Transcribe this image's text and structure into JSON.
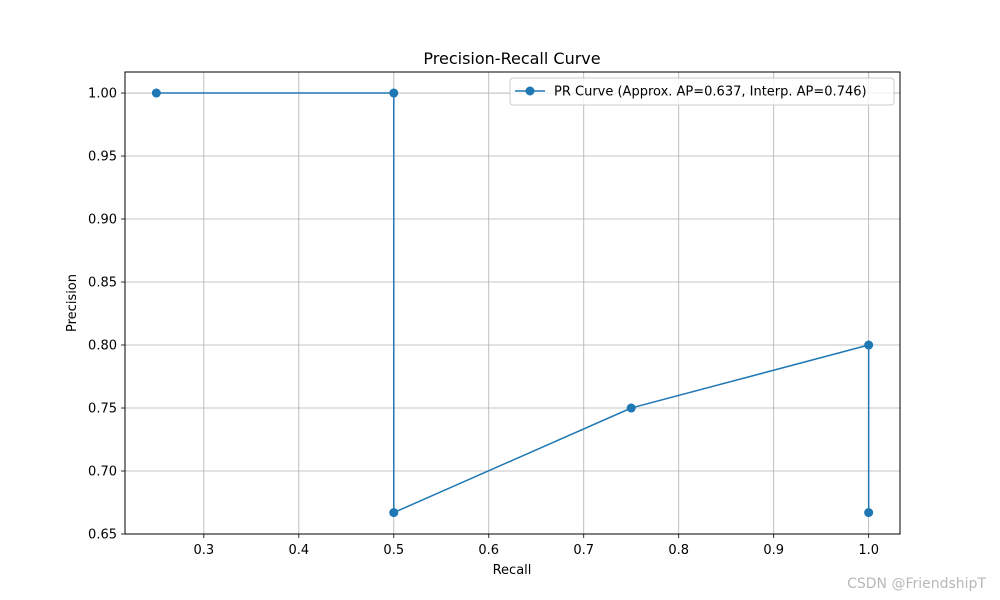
{
  "chart_data": {
    "type": "line",
    "title": "Precision-Recall Curve",
    "xlabel": "Recall",
    "ylabel": "Precision",
    "xlim": [
      0.217,
      1.033
    ],
    "ylim": [
      0.65,
      1.0167
    ],
    "xticks": [
      0.3,
      0.4,
      0.5,
      0.6,
      0.7,
      0.8,
      0.9,
      1.0
    ],
    "xtick_labels": [
      "0.3",
      "0.4",
      "0.5",
      "0.6",
      "0.7",
      "0.8",
      "0.9",
      "1.0"
    ],
    "yticks": [
      0.65,
      0.7,
      0.75,
      0.8,
      0.85,
      0.9,
      0.95,
      1.0
    ],
    "ytick_labels": [
      "0.65",
      "0.70",
      "0.75",
      "0.80",
      "0.85",
      "0.90",
      "0.95",
      "1.00"
    ],
    "grid": true,
    "legend_position": "top-right",
    "series": [
      {
        "name": "PR Curve (Approx. AP=0.637, Interp. AP=0.746)",
        "color": "#1f77b4",
        "marker": "circle",
        "x": [
          0.25,
          0.5,
          0.5,
          0.75,
          1.0,
          1.0
        ],
        "y": [
          1.0,
          1.0,
          0.667,
          0.75,
          0.8,
          0.667
        ]
      }
    ]
  },
  "watermark": "CSDN @FriendshipT"
}
